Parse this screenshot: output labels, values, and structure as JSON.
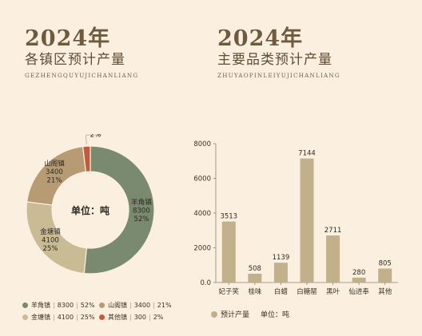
{
  "left_heading": {
    "year": "2024年",
    "subtitle": "各镇区预计产量",
    "pinyin": "GEZHENGQUYUJICHANLIANG"
  },
  "right_heading": {
    "year": "2024年",
    "subtitle": "主要品类预计产量",
    "pinyin": "ZHUYAOPINLEIYUJICHANLIANG"
  },
  "chart_data": [
    {
      "type": "pie",
      "style": "donut",
      "center_label": "单位：吨",
      "slices": [
        {
          "name": "羊角镇",
          "value": 8300,
          "percent": "52%",
          "color": "#7a8a6e"
        },
        {
          "name": "山阁镇",
          "value": 3400,
          "percent": "21%",
          "color": "#b79b73"
        },
        {
          "name": "金塘镇",
          "value": 4100,
          "percent": "25%",
          "color": "#c9bb94"
        },
        {
          "name": "其他镇",
          "value": 300,
          "percent": "2%",
          "color": "#c35a3c"
        }
      ],
      "legend_position": "bottom"
    },
    {
      "type": "bar",
      "categories": [
        "妃子笑",
        "桂味",
        "白蜡",
        "白糖罂",
        "黑叶",
        "仙进奉",
        "其他"
      ],
      "series": [
        {
          "name": "预计产量",
          "values": [
            3513,
            508,
            1139,
            7144,
            2711,
            280,
            805
          ],
          "color": "#c2b08a"
        }
      ],
      "ylim": [
        0,
        8000
      ],
      "yticks": [
        "0.0",
        "2000",
        "4000",
        "6000",
        "8000"
      ],
      "unit_label": "单位：吨",
      "grid": false,
      "legend_position": "bottom"
    }
  ]
}
